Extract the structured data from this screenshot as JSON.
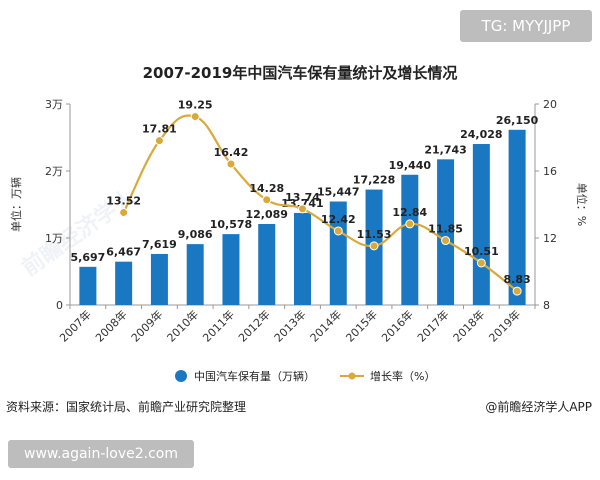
{
  "top_tag": "TG: MYYJJPP",
  "bottom_tag": "www.again-love2.com",
  "source_text": "资料来源：国家统计局、前瞻产业研究院整理",
  "brand_text": "@前瞻经济学人APP",
  "watermark_text": "前瞻经济学人",
  "chart_data": {
    "type": "bar",
    "title": "2007-2019年中国汽车保有量统计及增长情况",
    "categories": [
      "2007年",
      "2008年",
      "2009年",
      "2010年",
      "2011年",
      "2012年",
      "2013年",
      "2014年",
      "2015年",
      "2016年",
      "2017年",
      "2018年",
      "2019年"
    ],
    "series": [
      {
        "name": "中国汽车保有量（万辆）",
        "type": "bar",
        "axis": "left",
        "color": "#1a78c2",
        "values": [
          5697,
          6467,
          7619,
          9086,
          10578,
          12089,
          13741,
          15447,
          17228,
          19440,
          21743,
          24028,
          26150
        ],
        "labels": [
          "5,697",
          "6,467",
          "7,619",
          "9,086",
          "10,578",
          "12,089",
          "13,741",
          "15,447",
          "17,228",
          "19,440",
          "21,743",
          "24,028",
          "26,150"
        ]
      },
      {
        "name": "增长率（%）",
        "type": "line",
        "axis": "right",
        "color": "#d9a93a",
        "values": [
          null,
          13.52,
          17.81,
          19.25,
          16.42,
          14.28,
          13.74,
          12.42,
          11.53,
          12.84,
          11.85,
          10.51,
          8.83
        ],
        "labels": [
          "",
          "13.52",
          "17.81",
          "19.25",
          "16.42",
          "14.28",
          "13.74",
          "12.42",
          "11.53",
          "12.84",
          "11.85",
          "10.51",
          "8.83"
        ]
      }
    ],
    "y_left": {
      "label": "单位：万辆",
      "ylim": [
        0,
        30000
      ],
      "ticks": [
        0,
        10000,
        20000,
        30000
      ],
      "tick_labels": [
        "0",
        "1万",
        "2万",
        "3万"
      ]
    },
    "y_right": {
      "label": "单位：%",
      "ylim": [
        8,
        20
      ],
      "ticks": [
        8,
        12,
        16,
        20
      ],
      "tick_labels": [
        "8",
        "12",
        "16",
        "20"
      ]
    },
    "legend_position": "bottom",
    "grid": false
  }
}
